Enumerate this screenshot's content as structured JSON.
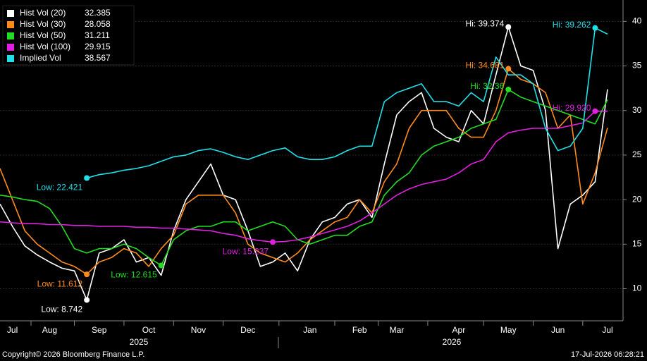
{
  "chart_data": {
    "type": "line",
    "categories": [
      null,
      "Jul",
      null,
      null,
      "Aug",
      null,
      null,
      null,
      "Sep",
      null,
      null,
      null,
      "Oct",
      null,
      null,
      null,
      "Nov",
      null,
      null,
      null,
      "Dec",
      null,
      null,
      null,
      null,
      "Jan",
      null,
      null,
      null,
      "Feb",
      null,
      null,
      "Mar",
      null,
      null,
      null,
      null,
      "Apr",
      null,
      null,
      null,
      "May",
      null,
      null,
      null,
      "Jun",
      null,
      null,
      null,
      "Jul"
    ],
    "years": [
      "2025",
      "2026"
    ],
    "ylim": [
      6.4,
      42.4
    ],
    "yticks": [
      10,
      15,
      20,
      25,
      30,
      35,
      40
    ],
    "grid": true,
    "series": [
      {
        "name": "Hist Vol (20)",
        "color": "#ffffff",
        "values": [
          19.5,
          17,
          14.8,
          13.8,
          13,
          12.3,
          12,
          8.742,
          14,
          14.5,
          15.5,
          13,
          13.5,
          11.5,
          16.5,
          20,
          22,
          24,
          20.5,
          20,
          16.5,
          12.5,
          13,
          14,
          12,
          15.5,
          17.5,
          18,
          19.5,
          20,
          18,
          24,
          29.5,
          31,
          32,
          28,
          27,
          26.5,
          30,
          28.5,
          34,
          39.374,
          35,
          34.5,
          30,
          14.5,
          19.5,
          20.5,
          22,
          32.385
        ],
        "annotations": [
          {
            "label": "Hi: 39.374",
            "value": 39.374
          },
          {
            "label": "Low: 8.742",
            "value": 8.742
          }
        ]
      },
      {
        "name": "Hist Vol (30)",
        "color": "#ff8c1a",
        "values": [
          23.5,
          20,
          16.5,
          15,
          14,
          13,
          12.5,
          11.612,
          13,
          13.5,
          14.5,
          14,
          12.5,
          14.5,
          16,
          19.5,
          20.5,
          20.5,
          20.5,
          18.5,
          15,
          14,
          13.5,
          13,
          14,
          15.5,
          16.5,
          17.5,
          18,
          20,
          18.5,
          22,
          24,
          28,
          30,
          30,
          30,
          28,
          27,
          27,
          30,
          34.681,
          33.5,
          33,
          32,
          28,
          29.5,
          19.5,
          23,
          28.058
        ],
        "annotations": [
          {
            "label": "Hi: 34.681",
            "value": 34.681
          },
          {
            "label": "Low: 11.612",
            "value": 11.612
          }
        ]
      },
      {
        "name": "Hist Vol (50)",
        "color": "#22dd22",
        "values": [
          20.5,
          20.3,
          20,
          19.8,
          19,
          17,
          14.5,
          14,
          14.5,
          14.5,
          15,
          14.5,
          13.5,
          12.615,
          15.5,
          16.5,
          17,
          17,
          17.5,
          17.5,
          16.5,
          17,
          17.5,
          17,
          15.5,
          15,
          15.5,
          16,
          16,
          17,
          17.5,
          20.5,
          22,
          23,
          25,
          26,
          26.5,
          27,
          28,
          28.5,
          29,
          32.36,
          31.5,
          31,
          30.5,
          30,
          29.5,
          29,
          28.5,
          31.211
        ],
        "annotations": [
          {
            "label": "Hi: 32.36",
            "value": 32.36
          },
          {
            "label": "Low: 12.615",
            "value": 12.615
          }
        ]
      },
      {
        "name": "Hist Vol (100)",
        "color": "#e020e0",
        "values": [
          17.5,
          17.4,
          17.3,
          17.3,
          17.2,
          17.2,
          17.1,
          17.1,
          17.0,
          17.0,
          17.0,
          16.9,
          16.9,
          16.8,
          16.8,
          16.7,
          16.6,
          16.5,
          16.2,
          16.0,
          15.6,
          15.4,
          15.237,
          15.3,
          15.5,
          15.8,
          16.2,
          16.6,
          17.0,
          17.6,
          18.5,
          19.5,
          20.5,
          21.2,
          21.7,
          22.0,
          22.3,
          23.0,
          24.0,
          24.5,
          26.5,
          27.5,
          27.8,
          28.0,
          28.0,
          28.0,
          28.3,
          28.6,
          29.92,
          29.915
        ],
        "annotations": [
          {
            "label": "Hi: 29.920",
            "value": 29.92
          },
          {
            "label": "Low: 15.237",
            "value": 15.237
          }
        ]
      },
      {
        "name": "Implied Vol",
        "color": "#22e0e8",
        "values": [
          null,
          null,
          null,
          null,
          null,
          null,
          null,
          22.421,
          22.8,
          23,
          23.3,
          23.5,
          23.8,
          24.3,
          24.8,
          25,
          25.5,
          25.7,
          25.3,
          24.8,
          24.5,
          25,
          25.5,
          25.8,
          24.8,
          24.5,
          24.5,
          24.8,
          25.5,
          26,
          26,
          31,
          32,
          32.5,
          33,
          31,
          31,
          30.5,
          32,
          31,
          36,
          34,
          34,
          33,
          28,
          25.5,
          26,
          28,
          39.262,
          38.567
        ],
        "annotations": [
          {
            "label": "Hi: 39.262",
            "value": 39.262
          },
          {
            "label": "Low: 22.421",
            "value": 22.421
          }
        ]
      }
    ]
  },
  "footer": {
    "copyright": "Copyright© 2026 Bloomberg Finance L.P.",
    "timestamp": "17-Jul-2026 06:28:21"
  }
}
